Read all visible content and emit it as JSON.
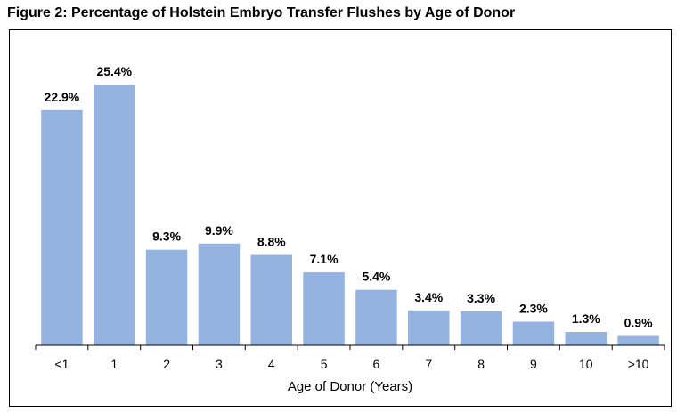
{
  "chart_data": {
    "type": "bar",
    "title": "Figure 2: Percentage of Holstein Embryo Transfer Flushes by Age of Donor",
    "xlabel": "Age of Donor (Years)",
    "ylabel": "",
    "categories": [
      "<1",
      "1",
      "2",
      "3",
      "4",
      "5",
      "6",
      "7",
      "8",
      "9",
      "10",
      ">10"
    ],
    "values": [
      22.9,
      25.4,
      9.3,
      9.9,
      8.8,
      7.1,
      5.4,
      3.4,
      3.3,
      2.3,
      1.3,
      0.9
    ],
    "data_labels": [
      "22.9%",
      "25.4%",
      "9.3%",
      "9.9%",
      "8.8%",
      "7.1%",
      "5.4%",
      "3.4%",
      "3.3%",
      "2.3%",
      "1.3%",
      "0.9%"
    ],
    "ylim": [
      0,
      25.4
    ],
    "grid": false,
    "legend": "none",
    "bar_color": "#95B3E0"
  }
}
